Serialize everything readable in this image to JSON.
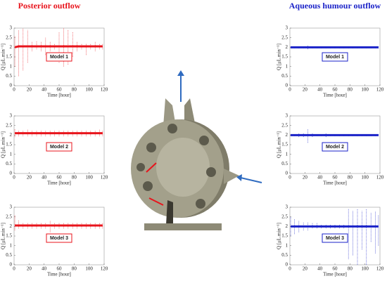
{
  "headings": [
    "Posterior outflow",
    "Aqueous humour outflow"
  ],
  "chart_data": [
    {
      "type": "spread",
      "annotation": "Model 1",
      "color": "#e8141c",
      "xlabel": "Time [hour]",
      "ylabel": "Q [μL.min⁻¹]",
      "xlim": [
        0,
        120
      ],
      "xticks": [
        0,
        20,
        40,
        60,
        80,
        100,
        120
      ],
      "ylim": [
        0,
        3
      ],
      "yticks": [
        0,
        0.5,
        1,
        1.5,
        2,
        2.5,
        3
      ],
      "x": [
        1,
        6,
        12,
        18,
        24,
        30,
        36,
        42,
        48,
        54,
        60,
        66,
        72,
        78,
        84,
        90,
        96,
        102,
        108,
        114,
        118
      ],
      "values": [
        2.0,
        2.05,
        2.05,
        2.05,
        2.05,
        2.05,
        2.05,
        2.05,
        2.05,
        2.05,
        2.05,
        2.05,
        2.05,
        2.05,
        2.05,
        2.05,
        2.05,
        2.05,
        2.05,
        2.05,
        2.05
      ],
      "highs": [
        2.6,
        2.9,
        3.0,
        2.9,
        2.3,
        2.3,
        2.3,
        2.5,
        2.3,
        2.2,
        2.8,
        3.0,
        2.9,
        2.8,
        2.3,
        2.2,
        2.2,
        2.2,
        2.3,
        2.2,
        2.2
      ],
      "lows": [
        1.0,
        0.5,
        0.8,
        1.2,
        1.8,
        1.9,
        1.8,
        1.6,
        1.8,
        1.9,
        1.2,
        1.0,
        1.1,
        1.5,
        1.8,
        1.9,
        1.6,
        1.9,
        1.8,
        1.9,
        1.9
      ]
    },
    {
      "type": "spread",
      "annotation": "Model 2",
      "color": "#e8141c",
      "xlabel": "Time [hour]",
      "ylabel": "Q [μL.min⁻¹]",
      "xlim": [
        0,
        120
      ],
      "xticks": [
        0,
        20,
        40,
        60,
        80,
        100,
        120
      ],
      "ylim": [
        0,
        3
      ],
      "yticks": [
        0,
        0.5,
        1,
        1.5,
        2,
        2.5,
        3
      ],
      "x": [
        1,
        6,
        12,
        18,
        24,
        30,
        36,
        42,
        48,
        54,
        60,
        66,
        72,
        78,
        84,
        90,
        96,
        102,
        108,
        114,
        118
      ],
      "values": [
        2.1,
        2.1,
        2.1,
        2.1,
        2.1,
        2.1,
        2.1,
        2.1,
        2.1,
        2.1,
        2.1,
        2.1,
        2.1,
        2.1,
        2.1,
        2.1,
        2.1,
        2.1,
        2.1,
        2.1,
        2.1
      ],
      "highs": [
        2.3,
        2.25,
        2.25,
        2.3,
        2.25,
        2.25,
        2.25,
        2.25,
        2.25,
        2.25,
        2.25,
        2.25,
        2.25,
        2.25,
        2.25,
        2.25,
        2.25,
        2.25,
        2.25,
        2.3,
        2.25
      ],
      "lows": [
        1.9,
        1.95,
        1.95,
        1.95,
        1.95,
        1.95,
        1.95,
        1.95,
        1.95,
        1.95,
        1.95,
        1.95,
        1.95,
        1.95,
        1.95,
        1.95,
        1.95,
        1.95,
        1.95,
        1.95,
        1.95
      ]
    },
    {
      "type": "spread",
      "annotation": "Model 3",
      "color": "#e8141c",
      "xlabel": "Time [hour]",
      "ylabel": "Q [μL.min⁻¹]",
      "xlim": [
        0,
        120
      ],
      "xticks": [
        0,
        20,
        40,
        60,
        80,
        100,
        120
      ],
      "ylim": [
        0,
        3
      ],
      "yticks": [
        0,
        0.5,
        1,
        1.5,
        2,
        2.5,
        3
      ],
      "x": [
        1,
        6,
        12,
        18,
        24,
        30,
        36,
        42,
        48,
        54,
        60,
        66,
        72,
        78,
        84,
        90,
        96,
        102,
        108,
        114,
        118
      ],
      "values": [
        2.05,
        2.05,
        2.05,
        2.05,
        2.05,
        2.05,
        2.05,
        2.05,
        2.05,
        2.05,
        2.05,
        2.05,
        2.05,
        2.05,
        2.05,
        2.05,
        2.05,
        2.05,
        2.05,
        2.05,
        2.05
      ],
      "highs": [
        2.6,
        2.3,
        2.2,
        2.2,
        2.2,
        2.2,
        2.2,
        2.2,
        2.3,
        2.2,
        2.2,
        2.2,
        2.2,
        2.2,
        2.2,
        2.2,
        2.2,
        2.2,
        2.2,
        2.2,
        2.2
      ],
      "lows": [
        1.8,
        1.9,
        1.9,
        1.9,
        1.9,
        1.9,
        1.9,
        1.9,
        1.7,
        1.9,
        1.9,
        1.9,
        1.9,
        1.9,
        1.9,
        1.9,
        1.9,
        1.9,
        1.9,
        1.9,
        1.9
      ]
    },
    {
      "type": "spread",
      "annotation": "Model 1",
      "color": "#1a22c8",
      "xlabel": "Time [hour]",
      "ylabel": "Q [μL.min⁻¹]",
      "xlim": [
        0,
        120
      ],
      "xticks": [
        0,
        20,
        40,
        60,
        80,
        100,
        120
      ],
      "ylim": [
        0,
        3
      ],
      "yticks": [
        0,
        0.5,
        1,
        1.5,
        2,
        2.5,
        3
      ],
      "x": [
        1,
        6,
        12,
        18,
        24,
        30,
        36,
        42,
        48,
        54,
        60,
        66,
        72,
        78,
        84,
        90,
        96,
        102,
        108,
        114,
        118
      ],
      "values": [
        2.0,
        2.0,
        2.0,
        2.0,
        2.0,
        2.0,
        2.0,
        2.0,
        2.0,
        2.0,
        2.0,
        2.0,
        2.0,
        2.0,
        2.0,
        2.0,
        2.0,
        2.0,
        2.0,
        2.0,
        2.0
      ],
      "highs": [
        2.05,
        2.05,
        2.05,
        2.05,
        2.1,
        2.05,
        2.05,
        2.05,
        2.05,
        2.05,
        2.05,
        2.05,
        2.05,
        2.05,
        2.05,
        2.05,
        2.05,
        2.05,
        2.05,
        2.05,
        2.05
      ],
      "lows": [
        1.95,
        1.95,
        1.95,
        1.95,
        1.9,
        1.95,
        1.95,
        1.95,
        1.95,
        1.95,
        1.95,
        1.95,
        1.95,
        1.95,
        1.95,
        1.95,
        1.95,
        1.95,
        1.95,
        1.95,
        1.95
      ]
    },
    {
      "type": "spread",
      "annotation": "Model 2",
      "color": "#1a22c8",
      "xlabel": "Time [hour]",
      "ylabel": "Q [μL.min⁻¹]",
      "xlim": [
        0,
        120
      ],
      "xticks": [
        0,
        20,
        40,
        60,
        80,
        100,
        120
      ],
      "ylim": [
        0,
        3
      ],
      "yticks": [
        0,
        0.5,
        1,
        1.5,
        2,
        2.5,
        3
      ],
      "x": [
        1,
        6,
        12,
        18,
        24,
        30,
        36,
        42,
        48,
        54,
        60,
        66,
        72,
        78,
        84,
        90,
        96,
        102,
        108,
        114,
        118
      ],
      "values": [
        2.0,
        2.0,
        2.0,
        2.0,
        2.0,
        2.0,
        2.0,
        2.0,
        2.0,
        2.0,
        2.0,
        2.0,
        2.0,
        2.0,
        2.0,
        2.0,
        2.0,
        2.0,
        2.0,
        2.0,
        2.0
      ],
      "highs": [
        2.05,
        2.05,
        2.1,
        2.1,
        2.3,
        2.1,
        2.05,
        2.05,
        2.1,
        2.05,
        2.05,
        2.05,
        2.05,
        2.05,
        2.05,
        2.05,
        2.05,
        2.05,
        2.05,
        2.05,
        2.05
      ],
      "lows": [
        1.95,
        1.95,
        1.9,
        1.9,
        1.6,
        1.9,
        1.95,
        1.95,
        1.9,
        1.95,
        1.95,
        1.95,
        1.95,
        1.95,
        1.95,
        1.95,
        1.95,
        1.95,
        1.95,
        1.95,
        1.95
      ]
    },
    {
      "type": "spread",
      "annotation": "Model 3",
      "color": "#1a22c8",
      "xlabel": "Time [hour]",
      "ylabel": "Q [μL.min⁻¹]",
      "xlim": [
        0,
        120
      ],
      "xticks": [
        0,
        20,
        40,
        60,
        80,
        100,
        120
      ],
      "ylim": [
        0,
        3
      ],
      "yticks": [
        0,
        0.5,
        1,
        1.5,
        2,
        2.5,
        3
      ],
      "x": [
        1,
        6,
        12,
        18,
        24,
        30,
        36,
        42,
        48,
        54,
        60,
        66,
        72,
        78,
        84,
        90,
        96,
        102,
        108,
        114,
        118
      ],
      "values": [
        2.0,
        2.0,
        2.0,
        2.0,
        2.0,
        2.0,
        2.0,
        2.0,
        2.0,
        2.0,
        2.0,
        2.0,
        2.0,
        2.0,
        2.0,
        2.0,
        2.0,
        2.0,
        2.0,
        2.0,
        2.0
      ],
      "highs": [
        2.5,
        2.4,
        2.3,
        2.2,
        2.2,
        2.2,
        2.2,
        2.1,
        2.1,
        2.1,
        2.1,
        2.1,
        2.1,
        2.9,
        2.8,
        2.9,
        2.8,
        2.9,
        2.7,
        2.8,
        2.6
      ],
      "lows": [
        1.5,
        1.6,
        1.7,
        1.8,
        1.8,
        1.9,
        1.9,
        1.9,
        1.9,
        1.9,
        1.9,
        1.9,
        1.9,
        0.3,
        0.5,
        0,
        0.8,
        0,
        1.2,
        0.6,
        1.0
      ]
    }
  ]
}
